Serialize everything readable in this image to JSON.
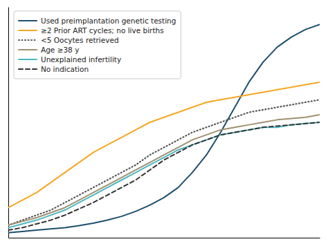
{
  "chart_data": {
    "type": "line",
    "x": [
      0,
      1,
      2,
      3,
      4,
      5,
      6,
      7,
      8,
      9,
      10,
      11,
      12,
      13,
      14,
      15,
      16,
      17,
      18,
      19,
      20,
      21,
      22
    ],
    "series": [
      {
        "name": "Used preimplantation genetic testing",
        "color": "#1d4e6b",
        "line_style": "solid",
        "values": [
          0.02,
          0.025,
          0.03,
          0.035,
          0.04,
          0.048,
          0.058,
          0.07,
          0.085,
          0.105,
          0.13,
          0.16,
          0.2,
          0.26,
          0.33,
          0.42,
          0.52,
          0.62,
          0.7,
          0.76,
          0.8,
          0.83,
          0.85
        ]
      },
      {
        "name": "≥2 Prior ART cycles; no live births",
        "color": "#f5a623",
        "line_style": "solid",
        "values": [
          0.12,
          0.15,
          0.18,
          0.22,
          0.26,
          0.3,
          0.34,
          0.37,
          0.4,
          0.43,
          0.46,
          0.48,
          0.5,
          0.52,
          0.54,
          0.55,
          0.56,
          0.57,
          0.58,
          0.59,
          0.6,
          0.61,
          0.62
        ]
      },
      {
        "name": "<5 Oocytes retrieved",
        "color": "#555555",
        "line_style": "dotted",
        "values": [
          0.05,
          0.07,
          0.09,
          0.11,
          0.14,
          0.17,
          0.2,
          0.23,
          0.26,
          0.29,
          0.33,
          0.36,
          0.39,
          0.42,
          0.44,
          0.46,
          0.48,
          0.5,
          0.51,
          0.52,
          0.53,
          0.54,
          0.55
        ]
      },
      {
        "name": "Age ≥38 y",
        "color": "#a09070",
        "line_style": "solid",
        "values": [
          0.05,
          0.065,
          0.08,
          0.1,
          0.12,
          0.15,
          0.18,
          0.21,
          0.24,
          0.27,
          0.3,
          0.33,
          0.36,
          0.39,
          0.41,
          0.43,
          0.44,
          0.45,
          0.46,
          0.47,
          0.475,
          0.48,
          0.49
        ]
      },
      {
        "name": "Unexplained infertility",
        "color": "#4ab8c1",
        "line_style": "solid",
        "values": [
          0.04,
          0.055,
          0.07,
          0.09,
          0.11,
          0.14,
          0.17,
          0.2,
          0.23,
          0.26,
          0.29,
          0.32,
          0.35,
          0.37,
          0.39,
          0.41,
          0.42,
          0.43,
          0.44,
          0.44,
          0.45,
          0.455,
          0.46
        ]
      },
      {
        "name": "No indication",
        "color": "#333333",
        "line_style": "dashed",
        "values": [
          0.03,
          0.04,
          0.055,
          0.07,
          0.09,
          0.115,
          0.14,
          0.17,
          0.2,
          0.23,
          0.27,
          0.31,
          0.34,
          0.37,
          0.39,
          0.41,
          0.42,
          0.43,
          0.44,
          0.445,
          0.45,
          0.455,
          0.46
        ]
      }
    ],
    "xlim": [
      0,
      22
    ],
    "ylim": [
      0.0,
      0.92
    ],
    "xticks": [],
    "yticks": [],
    "tick_labels": false,
    "grid": false,
    "legend": "upper left"
  }
}
